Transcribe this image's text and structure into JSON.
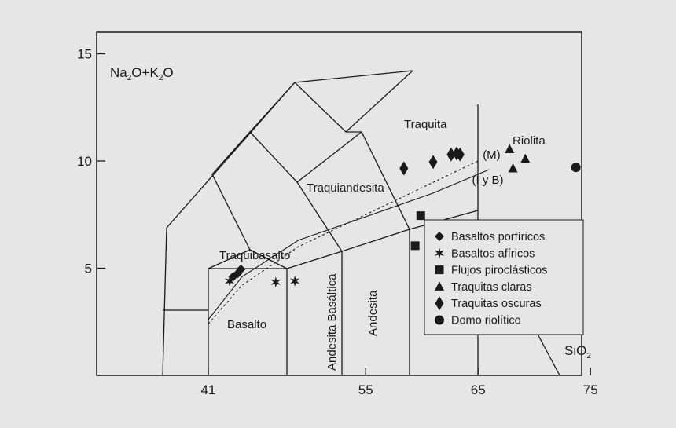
{
  "chart_data": {
    "type": "scatter",
    "y_axis": {
      "title_parts": [
        "Na",
        "2",
        "O+K",
        "2",
        "O"
      ],
      "ticks": [
        5,
        10,
        15
      ],
      "range": [
        0,
        16.3
      ]
    },
    "x_axis": {
      "title_parts": [
        "SiO",
        "2"
      ],
      "ticks": [
        41,
        55,
        65,
        75
      ],
      "range": [
        41,
        82
      ]
    },
    "field_labels": [
      {
        "name": "field-label-traquita",
        "text": "Traquita"
      },
      {
        "name": "field-label-riolita",
        "text": "Riolita"
      },
      {
        "name": "field-label-traquiandesita",
        "text": "Traquiandesita"
      },
      {
        "name": "field-label-traquibasalto",
        "text": "Traquibasalto"
      },
      {
        "name": "field-label-basalto",
        "text": "Basalto"
      },
      {
        "name": "field-label-andesita-basaltica",
        "text": "Andesita Basáltica"
      },
      {
        "name": "field-label-andesita",
        "text": "Andesita"
      }
    ],
    "trend_lines": [
      {
        "label": "(M)",
        "style": "dotted",
        "points": [
          [
            41,
            2.4
          ],
          [
            44,
            4.2
          ],
          [
            49,
            6.0
          ],
          [
            55,
            7.5
          ],
          [
            61,
            9.0
          ],
          [
            65,
            10.0
          ]
        ]
      },
      {
        "label": "(I y B)",
        "style": "solid",
        "points": [
          [
            41,
            2.6
          ],
          [
            44,
            4.6
          ],
          [
            49,
            6.3
          ],
          [
            55,
            7.4
          ],
          [
            61,
            8.5
          ],
          [
            66,
            9.6
          ]
        ]
      }
    ],
    "series": [
      {
        "name": "Basaltos porfíricos",
        "marker": "diamond",
        "points": [
          [
            43.2,
            4.6
          ],
          [
            43.6,
            4.75
          ],
          [
            43.9,
            4.95
          ]
        ]
      },
      {
        "name": "Basaltos afíricos",
        "marker": "star",
        "points": [
          [
            42.9,
            4.4
          ],
          [
            47.0,
            4.35
          ],
          [
            48.7,
            4.4
          ]
        ]
      },
      {
        "name": "Flujos piroclásticos",
        "marker": "square",
        "points": [
          [
            59.4,
            6.05
          ],
          [
            59.9,
            7.45
          ]
        ]
      },
      {
        "name": "Traquitas claras",
        "marker": "triangle",
        "points": [
          [
            67.8,
            10.55
          ],
          [
            68.1,
            9.65
          ],
          [
            69.2,
            10.1
          ]
        ]
      },
      {
        "name": "Traquitas oscuras",
        "marker": "tall-diamond",
        "points": [
          [
            58.4,
            9.65
          ],
          [
            61.0,
            9.95
          ],
          [
            62.6,
            10.3
          ],
          [
            63.1,
            10.35
          ],
          [
            63.4,
            10.3
          ]
        ]
      },
      {
        "name": "Domo riolítico",
        "marker": "circle",
        "points": [
          [
            73.7,
            9.7
          ]
        ]
      }
    ]
  }
}
